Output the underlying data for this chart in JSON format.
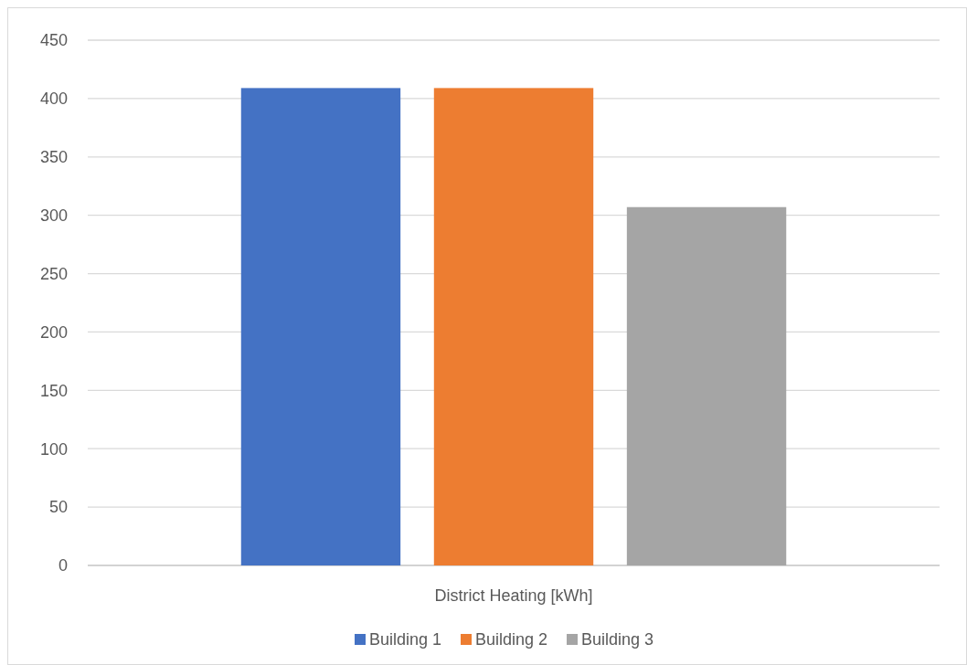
{
  "chart_data": {
    "type": "bar",
    "categories": [
      "District Heating [kWh]"
    ],
    "series": [
      {
        "name": "Building 1",
        "color": "#4472c4",
        "values": [
          409
        ]
      },
      {
        "name": "Building 2",
        "color": "#ed7d31",
        "values": [
          409
        ]
      },
      {
        "name": "Building 3",
        "color": "#a5a5a5",
        "values": [
          307
        ]
      }
    ],
    "ylim": [
      0,
      450
    ],
    "yticks": [
      0,
      50,
      100,
      150,
      200,
      250,
      300,
      350,
      400,
      450
    ],
    "grid": "y",
    "legend": "bottom"
  }
}
